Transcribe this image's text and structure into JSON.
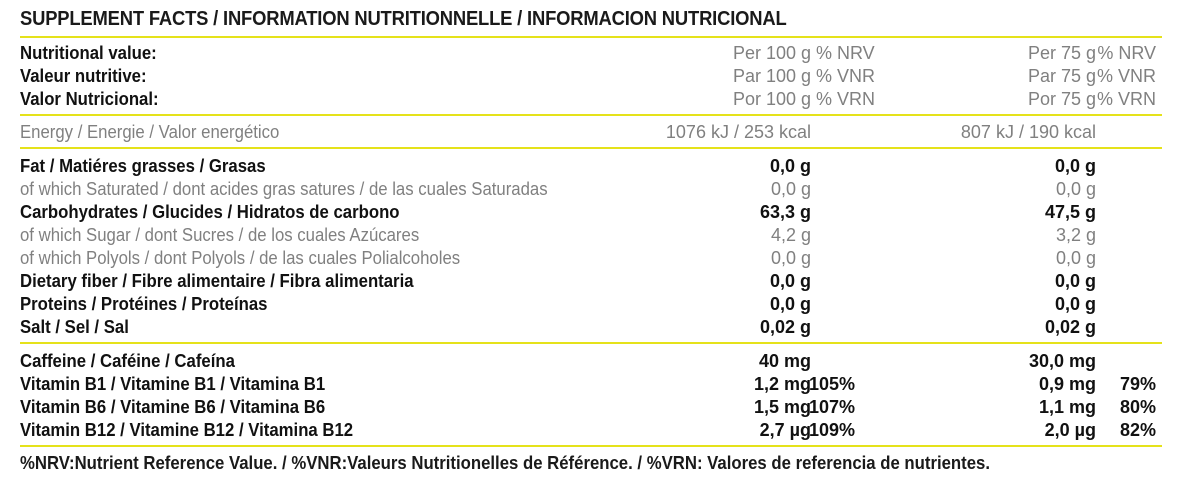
{
  "title": "SUPPLEMENT FACTS / INFORMATION NUTRITIONNELLE / INFORMACION NUTRICIONAL",
  "header_rows": [
    {
      "label": "Nutritional value:",
      "per100": "Per 100 g",
      "nrv100": "% NRV",
      "per75": "Per 75 g",
      "nrv75": "% NRV"
    },
    {
      "label": "Valeur nutritive:",
      "per100": "Par 100 g",
      "nrv100": "% VNR",
      "per75": "Par 75 g",
      "nrv75": "% VNR"
    },
    {
      "label": "Valor Nutricional:",
      "per100": "Por 100 g",
      "nrv100": "% VRN",
      "per75": "Por 75 g",
      "nrv75": "% VRN"
    }
  ],
  "energy": {
    "label": "Energy / Energie  / Valor energético",
    "per100": "1076 kJ / 253 kcal",
    "per75": "807 kJ / 190 kcal"
  },
  "nutrients": [
    {
      "label": "Fat / Matiéres grasses / Grasas",
      "per100": "0,0 g",
      "per75": "0,0 g"
    },
    {
      "label": "of which Saturated / dont acides gras satures / de las cuales Saturadas",
      "per100": "0,0 g",
      "per75": "0,0 g"
    },
    {
      "label": "Carbohydrates / Glucides / Hidratos de carbono",
      "per100": "63,3 g",
      "per75": "47,5 g"
    },
    {
      "label": "of which Sugar / dont Sucres / de los cuales Azúcares",
      "per100": "4,2 g",
      "per75": "3,2 g"
    },
    {
      "label": "of which Polyols / dont Polyols / de las cuales Polialcoholes",
      "per100": "0,0 g",
      "per75": "0,0 g"
    },
    {
      "label": "Dietary fiber / Fibre alimentaire / Fibra alimentaria",
      "per100": "0,0 g",
      "per75": "0,0 g"
    },
    {
      "label": "Proteins / Protéines / Proteínas",
      "per100": "0,0 g",
      "per75": "0,0 g"
    },
    {
      "label": "Salt / Sel / Sal",
      "per100": "0,02 g",
      "per75": "0,02 g"
    }
  ],
  "actives": [
    {
      "label": "Caffeine / Caféine / Cafeína",
      "per100": "40 mg",
      "nrv100": "",
      "per75": "30,0 mg",
      "nrv75": ""
    },
    {
      "label": "Vitamin B1 / Vitamine B1 / Vitamina B1",
      "per100": "1,2 mg",
      "nrv100": "105%",
      "per75": "0,9 mg",
      "nrv75": "79%"
    },
    {
      "label": "Vitamin B6 / Vitamine B6 / Vitamina B6",
      "per100": "1,5 mg",
      "nrv100": "107%",
      "per75": "1,1 mg",
      "nrv75": "80%"
    },
    {
      "label": "Vitamin B12 / Vitamine B12 / Vitamina B12",
      "per100": "2,7 µg",
      "nrv100": "109%",
      "per75": "2,0 µg",
      "nrv75": "82%"
    }
  ],
  "footnote": "%NRV:Nutrient Reference Value. / %VNR:Valeurs Nutritionelles de Référence. / %VRN: Valores de referencia de nutrientes.",
  "colors": {
    "rule": "#e5e21a",
    "text": "#1a1a1a",
    "muted": "#808080"
  }
}
